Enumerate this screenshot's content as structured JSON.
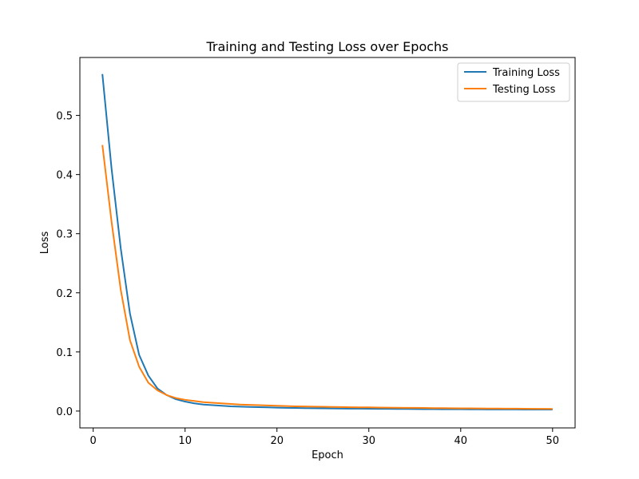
{
  "chart_data": {
    "type": "line",
    "title": "Training and Testing Loss over Epochs",
    "xlabel": "Epoch",
    "ylabel": "Loss",
    "xlim": [
      -1.45,
      52.45
    ],
    "ylim": [
      -0.0285,
      0.598
    ],
    "xticks": [
      0,
      10,
      20,
      30,
      40,
      50
    ],
    "yticks": [
      0.0,
      0.1,
      0.2,
      0.3,
      0.4,
      0.5
    ],
    "xtick_labels": [
      "0",
      "10",
      "20",
      "30",
      "40",
      "50"
    ],
    "ytick_labels": [
      "0.0",
      "0.1",
      "0.2",
      "0.3",
      "0.4",
      "0.5"
    ],
    "grid": false,
    "legend_position": "top-right",
    "x": [
      1,
      2,
      3,
      4,
      5,
      6,
      7,
      8,
      9,
      10,
      11,
      12,
      13,
      14,
      15,
      16,
      17,
      18,
      19,
      20,
      21,
      22,
      23,
      24,
      25,
      26,
      27,
      28,
      29,
      30,
      31,
      32,
      33,
      34,
      35,
      36,
      37,
      38,
      39,
      40,
      41,
      42,
      43,
      44,
      45,
      46,
      47,
      48,
      49,
      50
    ],
    "series": [
      {
        "name": "Training Loss",
        "color": "#1f77b4",
        "values": [
          0.57,
          0.41,
          0.275,
          0.165,
          0.095,
          0.06,
          0.038,
          0.027,
          0.02,
          0.016,
          0.013,
          0.011,
          0.01,
          0.009,
          0.008,
          0.0075,
          0.007,
          0.0066,
          0.0062,
          0.0058,
          0.0055,
          0.0052,
          0.005,
          0.0048,
          0.0046,
          0.0044,
          0.0042,
          0.0041,
          0.004,
          0.0039,
          0.0038,
          0.0037,
          0.0036,
          0.0035,
          0.0034,
          0.0033,
          0.0032,
          0.0031,
          0.003,
          0.003,
          0.0029,
          0.0029,
          0.0028,
          0.0028,
          0.0027,
          0.0027,
          0.0026,
          0.0026,
          0.0025,
          0.0025
        ]
      },
      {
        "name": "Testing Loss",
        "color": "#ff7f0e",
        "values": [
          0.45,
          0.32,
          0.205,
          0.12,
          0.075,
          0.048,
          0.035,
          0.027,
          0.022,
          0.019,
          0.017,
          0.015,
          0.014,
          0.013,
          0.012,
          0.011,
          0.0105,
          0.01,
          0.0095,
          0.009,
          0.0085,
          0.008,
          0.0078,
          0.0075,
          0.0072,
          0.007,
          0.0068,
          0.0065,
          0.0063,
          0.0062,
          0.006,
          0.0058,
          0.0056,
          0.0055,
          0.0054,
          0.0052,
          0.005,
          0.0049,
          0.0048,
          0.0046,
          0.0045,
          0.0044,
          0.0043,
          0.0042,
          0.0041,
          0.004,
          0.0039,
          0.0038,
          0.0037,
          0.0036
        ]
      }
    ]
  }
}
